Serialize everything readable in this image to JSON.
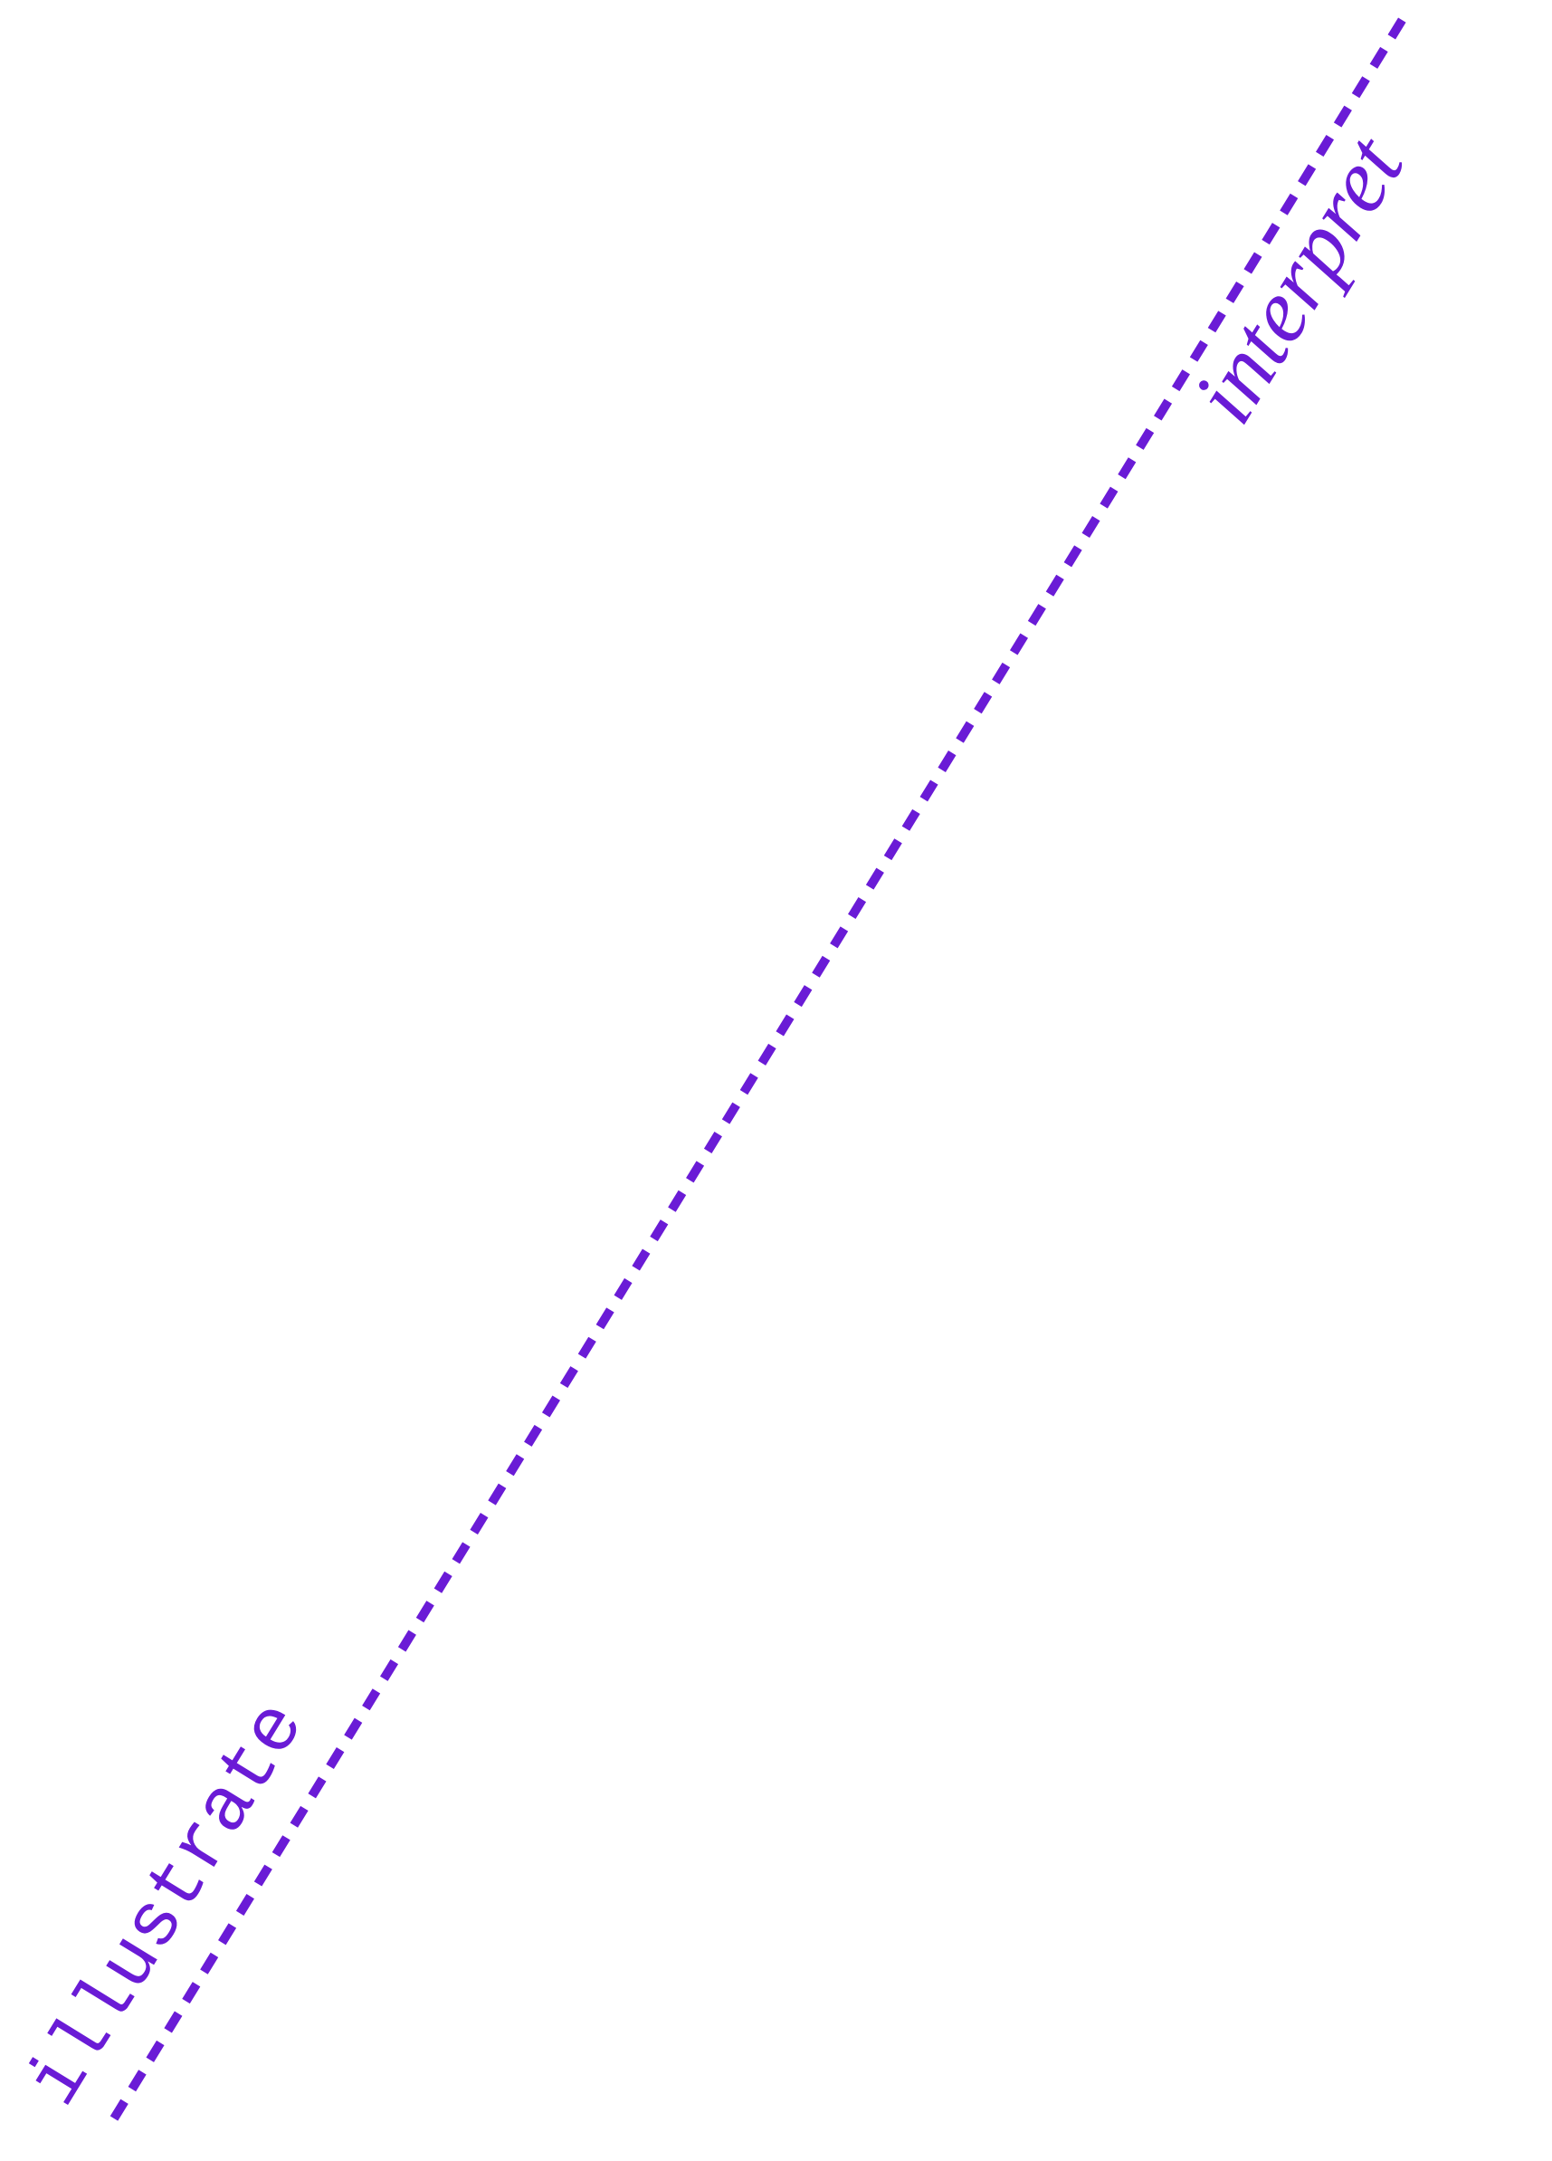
{
  "labels": {
    "start": "illustrate",
    "end": "interpret"
  }
}
